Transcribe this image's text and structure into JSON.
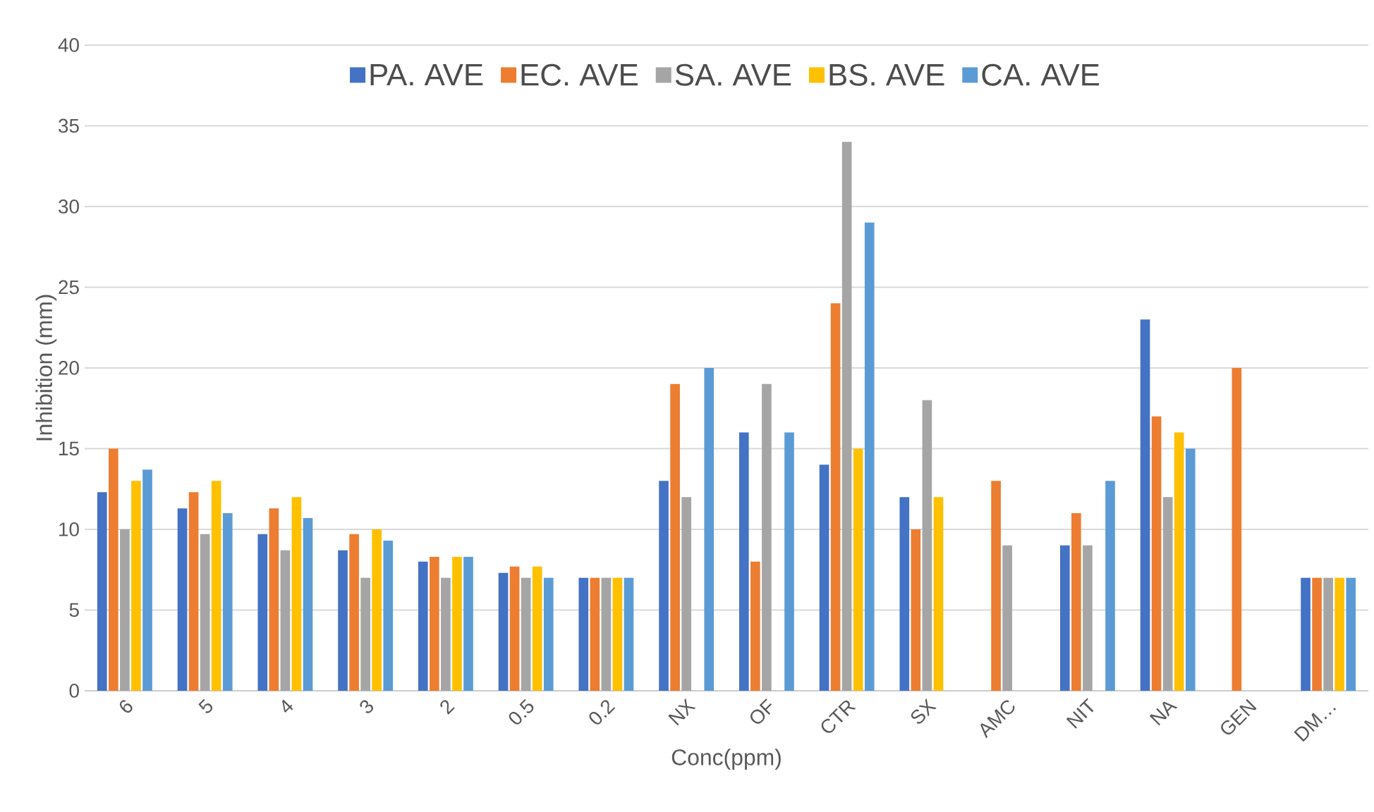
{
  "chart_data": {
    "type": "bar",
    "xlabel": "Conc(ppm)",
    "ylabel": "Inhibition (mm)",
    "categories": [
      "6",
      "5",
      "4",
      "3",
      "2",
      "0.5",
      "0.2",
      "NX",
      "OF",
      "CTR",
      "SX",
      "AMC",
      "NIT",
      "NA",
      "GEN",
      "DM…"
    ],
    "series": [
      {
        "name": "PA. AVE",
        "color": "#4472c4",
        "values": [
          12.3,
          11.3,
          9.7,
          8.7,
          8,
          7.3,
          7,
          13,
          16,
          14,
          12,
          null,
          9,
          23,
          null,
          7
        ]
      },
      {
        "name": "EC. AVE",
        "color": "#ed7d31",
        "values": [
          15,
          12.3,
          11.3,
          9.7,
          8.3,
          7.7,
          7,
          19,
          8,
          24,
          10,
          13,
          11,
          17,
          20,
          7
        ]
      },
      {
        "name": "SA. AVE",
        "color": "#a5a5a5",
        "values": [
          10,
          9.7,
          8.7,
          7,
          7,
          7,
          7,
          12,
          19,
          34,
          18,
          9,
          9,
          12,
          null,
          7
        ]
      },
      {
        "name": "BS. AVE",
        "color": "#ffc000",
        "values": [
          13,
          13,
          12,
          10,
          8.3,
          7.7,
          7,
          null,
          null,
          15,
          12,
          null,
          null,
          16,
          null,
          7
        ]
      },
      {
        "name": "CA. AVE",
        "color": "#5b9bd5",
        "values": [
          13.7,
          11,
          10.7,
          9.3,
          8.3,
          7,
          7,
          20,
          16,
          29,
          null,
          null,
          13,
          15,
          null,
          7
        ]
      }
    ],
    "ylim": [
      0,
      40
    ],
    "yticks": [
      0,
      5,
      10,
      15,
      20,
      25,
      30,
      35,
      40
    ],
    "grid": "y",
    "legend": "top"
  }
}
